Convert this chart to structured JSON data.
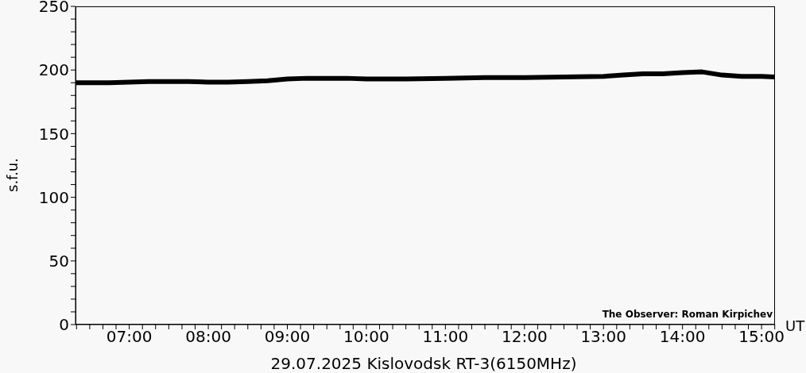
{
  "chart_data": {
    "type": "line",
    "title": "29.07.2025 Kislovodsk RT-3(6150MHz)",
    "xlabel": "UT",
    "ylabel": "s.f.u.",
    "annotations": [
      "The Observer: Roman Kirpichev"
    ],
    "xlim": [
      6.32,
      15.17
    ],
    "ylim": [
      0,
      250
    ],
    "xticks": [
      {
        "value": 6.333,
        "label": null
      },
      {
        "value": 6.5,
        "label": null
      },
      {
        "value": 6.667,
        "label": null
      },
      {
        "value": 6.833,
        "label": null
      },
      {
        "value": 7,
        "label": "07:00"
      },
      {
        "value": 7.167,
        "label": null
      },
      {
        "value": 7.333,
        "label": null
      },
      {
        "value": 7.5,
        "label": null
      },
      {
        "value": 7.667,
        "label": null
      },
      {
        "value": 7.833,
        "label": null
      },
      {
        "value": 8,
        "label": "08:00"
      },
      {
        "value": 8.167,
        "label": null
      },
      {
        "value": 8.333,
        "label": null
      },
      {
        "value": 8.5,
        "label": null
      },
      {
        "value": 8.667,
        "label": null
      },
      {
        "value": 8.833,
        "label": null
      },
      {
        "value": 9,
        "label": "09:00"
      },
      {
        "value": 9.167,
        "label": null
      },
      {
        "value": 9.333,
        "label": null
      },
      {
        "value": 9.5,
        "label": null
      },
      {
        "value": 9.667,
        "label": null
      },
      {
        "value": 9.833,
        "label": null
      },
      {
        "value": 10,
        "label": "10:00"
      },
      {
        "value": 10.167,
        "label": null
      },
      {
        "value": 10.333,
        "label": null
      },
      {
        "value": 10.5,
        "label": null
      },
      {
        "value": 10.667,
        "label": null
      },
      {
        "value": 10.833,
        "label": null
      },
      {
        "value": 11,
        "label": "11:00"
      },
      {
        "value": 11.167,
        "label": null
      },
      {
        "value": 11.333,
        "label": null
      },
      {
        "value": 11.5,
        "label": null
      },
      {
        "value": 11.667,
        "label": null
      },
      {
        "value": 11.833,
        "label": null
      },
      {
        "value": 12,
        "label": "12:00"
      },
      {
        "value": 12.167,
        "label": null
      },
      {
        "value": 12.333,
        "label": null
      },
      {
        "value": 12.5,
        "label": null
      },
      {
        "value": 12.667,
        "label": null
      },
      {
        "value": 12.833,
        "label": null
      },
      {
        "value": 13,
        "label": "13:00"
      },
      {
        "value": 13.167,
        "label": null
      },
      {
        "value": 13.333,
        "label": null
      },
      {
        "value": 13.5,
        "label": null
      },
      {
        "value": 13.667,
        "label": null
      },
      {
        "value": 13.833,
        "label": null
      },
      {
        "value": 14,
        "label": "14:00"
      },
      {
        "value": 14.167,
        "label": null
      },
      {
        "value": 14.333,
        "label": null
      },
      {
        "value": 14.5,
        "label": null
      },
      {
        "value": 14.667,
        "label": null
      },
      {
        "value": 14.833,
        "label": null
      },
      {
        "value": 15,
        "label": "15:00"
      },
      {
        "value": 15.167,
        "label": null
      }
    ],
    "yticks": [
      0,
      {
        "value": 10,
        "label": null
      },
      {
        "value": 20,
        "label": null
      },
      {
        "value": 30,
        "label": null
      },
      {
        "value": 40,
        "label": null
      },
      50,
      {
        "value": 60,
        "label": null
      },
      {
        "value": 70,
        "label": null
      },
      {
        "value": 80,
        "label": null
      },
      {
        "value": 90,
        "label": null
      },
      100,
      {
        "value": 110,
        "label": null
      },
      {
        "value": 120,
        "label": null
      },
      {
        "value": 130,
        "label": null
      },
      {
        "value": 140,
        "label": null
      },
      150,
      {
        "value": 160,
        "label": null
      },
      {
        "value": 170,
        "label": null
      },
      {
        "value": 180,
        "label": null
      },
      {
        "value": 190,
        "label": null
      },
      200,
      {
        "value": 210,
        "label": null
      },
      {
        "value": 220,
        "label": null
      },
      {
        "value": 230,
        "label": null
      },
      {
        "value": 240,
        "label": null
      },
      250
    ],
    "x": [
      6.33,
      6.5,
      6.75,
      7,
      7.25,
      7.5,
      7.75,
      8,
      8.25,
      8.5,
      8.75,
      9,
      9.25,
      9.5,
      9.75,
      10,
      10.5,
      11,
      11.5,
      12,
      12.5,
      13,
      13.25,
      13.5,
      13.75,
      14,
      14.25,
      14.5,
      14.75,
      15,
      15.17
    ],
    "series": [
      {
        "color": "#000000",
        "values": [
          190,
          190,
          190,
          190.5,
          191,
          191,
          191,
          190.5,
          190.5,
          191,
          191.5,
          193,
          193.5,
          193.5,
          193.5,
          193,
          193,
          193.5,
          194,
          194,
          194.5,
          195,
          196,
          197,
          197,
          198,
          198.5,
          196,
          195,
          195,
          194.5
        ]
      }
    ]
  }
}
